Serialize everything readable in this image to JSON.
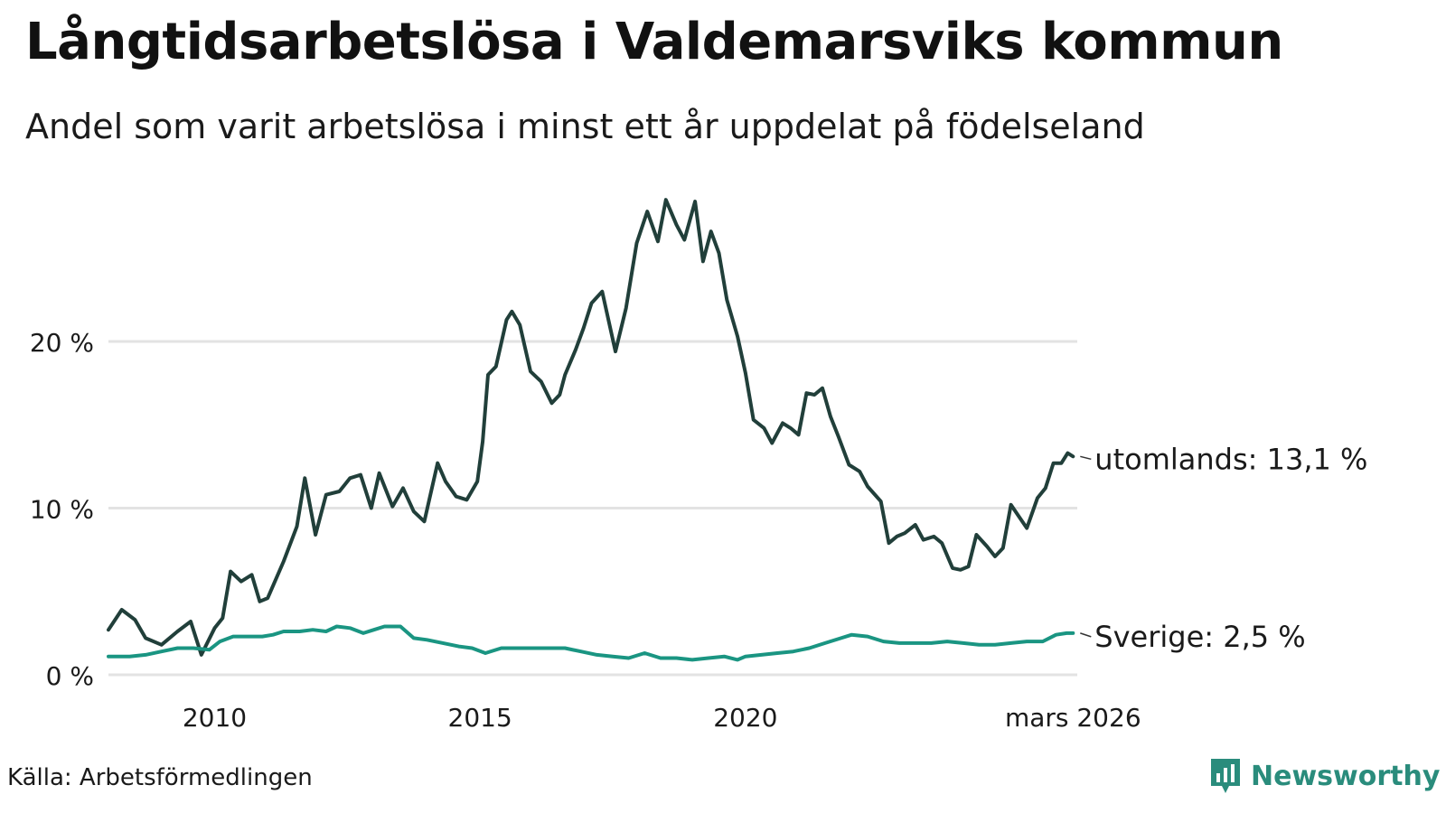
{
  "title": "Långtidsarbetslösa i Valdemarsviks kommun",
  "subtitle": "Andel som varit arbetslösa i minst ett år uppdelat på födelseland",
  "source": "Källa: Arbetsförmedlingen",
  "brand": {
    "name": "Newsworthy",
    "icon": "newsworthy-logo-icon",
    "color": "#2a8c7c"
  },
  "colors": {
    "utomlands": "#213f3a",
    "sverige": "#1a9582",
    "grid": "#e3e3e3"
  },
  "chart_data": {
    "type": "line",
    "title": "Långtidsarbetslösa i Valdemarsviks kommun",
    "xlabel": "",
    "ylabel": "",
    "xlim": [
      2008.0,
      2026.25
    ],
    "ylim": [
      0,
      30
    ],
    "y_ticks": [
      0,
      10,
      20
    ],
    "y_tick_labels": [
      "0 %",
      "10 %",
      "20 %"
    ],
    "x_ticks": [
      2010,
      2015,
      2020,
      2026.17
    ],
    "x_tick_labels": [
      "2010",
      "2015",
      "2020",
      "mars 2026"
    ],
    "series": [
      {
        "name": "utomlands",
        "end_label": "utomlands: 13,1 %",
        "last_value": 13.1,
        "points": [
          [
            2008.0,
            2.7
          ],
          [
            2008.25,
            3.9
          ],
          [
            2008.5,
            3.3
          ],
          [
            2008.7,
            2.2
          ],
          [
            2009.0,
            1.8
          ],
          [
            2009.3,
            2.6
          ],
          [
            2009.55,
            3.2
          ],
          [
            2009.75,
            1.2
          ],
          [
            2010.0,
            2.8
          ],
          [
            2010.15,
            3.4
          ],
          [
            2010.3,
            6.2
          ],
          [
            2010.5,
            5.6
          ],
          [
            2010.7,
            6.0
          ],
          [
            2010.85,
            4.4
          ],
          [
            2011.0,
            4.6
          ],
          [
            2011.3,
            6.8
          ],
          [
            2011.55,
            8.9
          ],
          [
            2011.7,
            11.8
          ],
          [
            2011.9,
            8.4
          ],
          [
            2012.1,
            10.8
          ],
          [
            2012.35,
            11.0
          ],
          [
            2012.55,
            11.8
          ],
          [
            2012.75,
            12.0
          ],
          [
            2012.95,
            10.0
          ],
          [
            2013.1,
            12.1
          ],
          [
            2013.35,
            10.1
          ],
          [
            2013.55,
            11.2
          ],
          [
            2013.75,
            9.8
          ],
          [
            2013.95,
            9.2
          ],
          [
            2014.2,
            12.7
          ],
          [
            2014.35,
            11.6
          ],
          [
            2014.55,
            10.7
          ],
          [
            2014.75,
            10.5
          ],
          [
            2014.95,
            11.6
          ],
          [
            2015.05,
            14.0
          ],
          [
            2015.15,
            18.0
          ],
          [
            2015.3,
            18.5
          ],
          [
            2015.5,
            21.3
          ],
          [
            2015.6,
            21.8
          ],
          [
            2015.75,
            21.0
          ],
          [
            2015.95,
            18.2
          ],
          [
            2016.15,
            17.6
          ],
          [
            2016.35,
            16.3
          ],
          [
            2016.5,
            16.8
          ],
          [
            2016.6,
            18.0
          ],
          [
            2016.8,
            19.5
          ],
          [
            2016.95,
            20.8
          ],
          [
            2017.1,
            22.3
          ],
          [
            2017.3,
            23.0
          ],
          [
            2017.55,
            19.4
          ],
          [
            2017.75,
            22.0
          ],
          [
            2017.95,
            25.9
          ],
          [
            2018.15,
            27.8
          ],
          [
            2018.35,
            26.0
          ],
          [
            2018.5,
            28.5
          ],
          [
            2018.7,
            27.0
          ],
          [
            2018.85,
            26.1
          ],
          [
            2019.05,
            28.4
          ],
          [
            2019.2,
            24.8
          ],
          [
            2019.35,
            26.6
          ],
          [
            2019.5,
            25.3
          ],
          [
            2019.65,
            22.5
          ],
          [
            2019.85,
            20.3
          ],
          [
            2020.0,
            18.1
          ],
          [
            2020.15,
            15.3
          ],
          [
            2020.35,
            14.8
          ],
          [
            2020.5,
            13.9
          ],
          [
            2020.7,
            15.1
          ],
          [
            2020.85,
            14.8
          ],
          [
            2021.0,
            14.4
          ],
          [
            2021.15,
            16.9
          ],
          [
            2021.3,
            16.8
          ],
          [
            2021.45,
            17.2
          ],
          [
            2021.6,
            15.5
          ],
          [
            2021.75,
            14.3
          ],
          [
            2021.95,
            12.6
          ],
          [
            2022.15,
            12.2
          ],
          [
            2022.3,
            11.3
          ],
          [
            2022.55,
            10.4
          ],
          [
            2022.7,
            7.9
          ],
          [
            2022.85,
            8.3
          ],
          [
            2023.0,
            8.5
          ],
          [
            2023.2,
            9.0
          ],
          [
            2023.35,
            8.1
          ],
          [
            2023.55,
            8.3
          ],
          [
            2023.7,
            7.9
          ],
          [
            2023.9,
            6.4
          ],
          [
            2024.05,
            6.3
          ],
          [
            2024.2,
            6.5
          ],
          [
            2024.35,
            8.4
          ],
          [
            2024.55,
            7.7
          ],
          [
            2024.7,
            7.1
          ],
          [
            2024.85,
            7.6
          ],
          [
            2025.0,
            10.2
          ],
          [
            2025.15,
            9.5
          ],
          [
            2025.3,
            8.8
          ],
          [
            2025.5,
            10.6
          ],
          [
            2025.65,
            11.2
          ],
          [
            2025.8,
            12.7
          ],
          [
            2025.95,
            12.7
          ],
          [
            2026.07,
            13.3
          ],
          [
            2026.17,
            13.1
          ]
        ]
      },
      {
        "name": "Sverige",
        "end_label": "Sverige:  2,5 %",
        "last_value": 2.5,
        "points": [
          [
            2008.0,
            1.1
          ],
          [
            2008.4,
            1.1
          ],
          [
            2008.7,
            1.2
          ],
          [
            2009.0,
            1.4
          ],
          [
            2009.3,
            1.6
          ],
          [
            2009.6,
            1.6
          ],
          [
            2009.9,
            1.5
          ],
          [
            2010.1,
            2.0
          ],
          [
            2010.35,
            2.3
          ],
          [
            2010.6,
            2.3
          ],
          [
            2010.9,
            2.3
          ],
          [
            2011.1,
            2.4
          ],
          [
            2011.3,
            2.6
          ],
          [
            2011.6,
            2.6
          ],
          [
            2011.85,
            2.7
          ],
          [
            2012.1,
            2.6
          ],
          [
            2012.3,
            2.9
          ],
          [
            2012.55,
            2.8
          ],
          [
            2012.8,
            2.5
          ],
          [
            2013.0,
            2.7
          ],
          [
            2013.2,
            2.9
          ],
          [
            2013.5,
            2.9
          ],
          [
            2013.75,
            2.2
          ],
          [
            2014.0,
            2.1
          ],
          [
            2014.3,
            1.9
          ],
          [
            2014.6,
            1.7
          ],
          [
            2014.85,
            1.6
          ],
          [
            2015.1,
            1.3
          ],
          [
            2015.4,
            1.6
          ],
          [
            2015.7,
            1.6
          ],
          [
            2016.0,
            1.6
          ],
          [
            2016.3,
            1.6
          ],
          [
            2016.6,
            1.6
          ],
          [
            2016.9,
            1.4
          ],
          [
            2017.2,
            1.2
          ],
          [
            2017.5,
            1.1
          ],
          [
            2017.8,
            1.0
          ],
          [
            2018.1,
            1.3
          ],
          [
            2018.4,
            1.0
          ],
          [
            2018.7,
            1.0
          ],
          [
            2019.0,
            0.9
          ],
          [
            2019.3,
            1.0
          ],
          [
            2019.6,
            1.1
          ],
          [
            2019.85,
            0.9
          ],
          [
            2020.0,
            1.1
          ],
          [
            2020.3,
            1.2
          ],
          [
            2020.6,
            1.3
          ],
          [
            2020.9,
            1.4
          ],
          [
            2021.2,
            1.6
          ],
          [
            2021.5,
            1.9
          ],
          [
            2021.8,
            2.2
          ],
          [
            2022.0,
            2.4
          ],
          [
            2022.3,
            2.3
          ],
          [
            2022.6,
            2.0
          ],
          [
            2022.9,
            1.9
          ],
          [
            2023.2,
            1.9
          ],
          [
            2023.5,
            1.9
          ],
          [
            2023.8,
            2.0
          ],
          [
            2024.1,
            1.9
          ],
          [
            2024.4,
            1.8
          ],
          [
            2024.7,
            1.8
          ],
          [
            2025.0,
            1.9
          ],
          [
            2025.3,
            2.0
          ],
          [
            2025.6,
            2.0
          ],
          [
            2025.85,
            2.4
          ],
          [
            2026.05,
            2.5
          ],
          [
            2026.17,
            2.5
          ]
        ]
      }
    ]
  }
}
